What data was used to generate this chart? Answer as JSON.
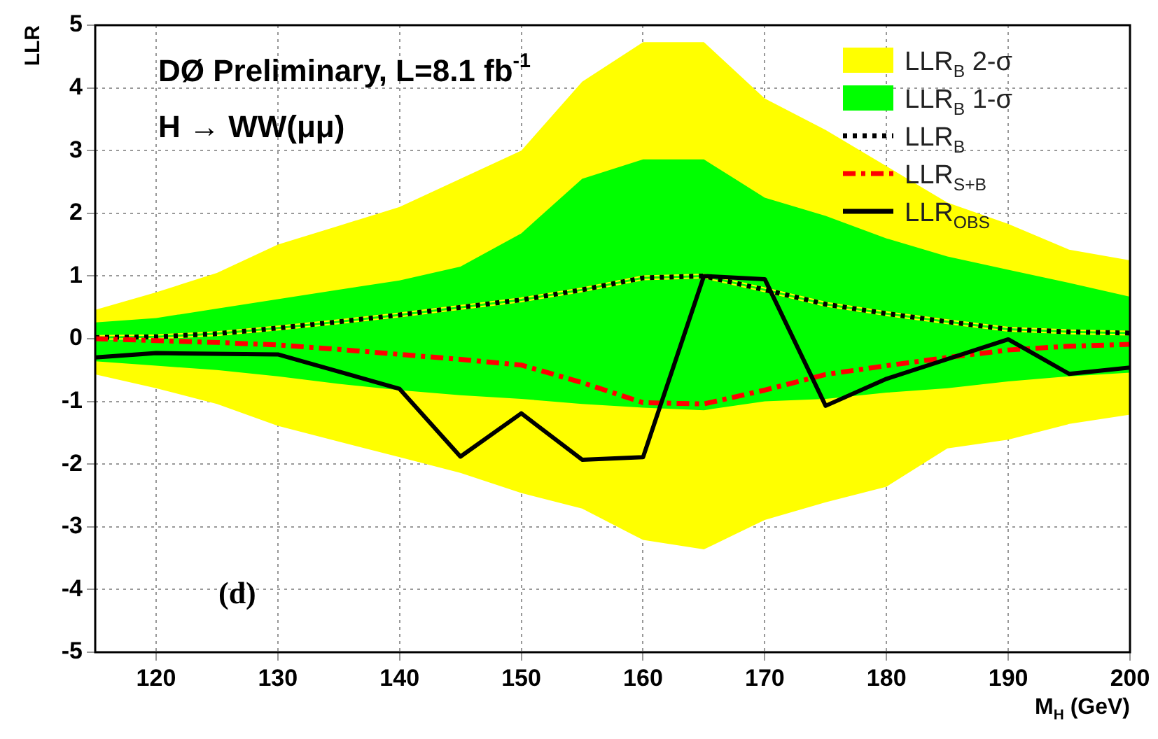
{
  "chart_data": {
    "type": "line",
    "title": "DØ Preliminary, L=8.1 fb$^{-1}$",
    "xlabel": "M$_{H}$ (GeV)",
    "ylabel": "LLR",
    "annotations": [
      "H → WW(μμ)",
      "(d)"
    ],
    "xlim": [
      115,
      200
    ],
    "xticks": [
      120,
      130,
      140,
      150,
      160,
      170,
      180,
      190,
      200
    ],
    "ylim": [
      -5,
      5
    ],
    "yticks": [
      -5,
      -4,
      -3,
      -2,
      -1,
      0,
      1,
      2,
      3,
      4,
      5
    ],
    "grid": true,
    "legend": "top right",
    "marker": "none",
    "series": [
      {
        "name": "LLR$_{B}$ 2-σ",
        "type": "line",
        "color": "#ffff00",
        "x": [
          115,
          120,
          125,
          130,
          135,
          140,
          145,
          150,
          155,
          160,
          165,
          170,
          175,
          180,
          185,
          190,
          195,
          200
        ],
        "values": [
          0.02,
          0.03,
          0.08,
          0.17,
          0.27,
          0.38,
          0.5,
          0.62,
          0.78,
          0.97,
          1.0,
          0.78,
          0.55,
          0.4,
          0.27,
          0.15,
          0.11,
          0.09
        ],
        "lower": [
          -0.57,
          -0.79,
          -1.04,
          -1.39,
          -1.64,
          -1.89,
          -2.14,
          -2.46,
          -2.71,
          -3.21,
          -3.36,
          -2.89,
          -2.61,
          -2.36,
          -1.75,
          -1.61,
          -1.36,
          -1.21
        ],
        "upper": [
          0.46,
          0.74,
          1.05,
          1.5,
          1.8,
          2.1,
          2.55,
          3.0,
          4.1,
          4.73,
          4.73,
          3.83,
          3.33,
          2.75,
          2.17,
          1.83,
          1.42,
          1.25
        ]
      },
      {
        "name": "LLR$_{B}$ 1-σ",
        "type": "line",
        "color": "#00ff00",
        "x": [
          115,
          120,
          125,
          130,
          135,
          140,
          145,
          150,
          155,
          160,
          165,
          170,
          175,
          180,
          185,
          190,
          195,
          200
        ],
        "values": [
          0.02,
          0.03,
          0.08,
          0.17,
          0.27,
          0.38,
          0.5,
          0.62,
          0.78,
          0.97,
          1.0,
          0.78,
          0.55,
          0.4,
          0.27,
          0.15,
          0.11,
          0.09
        ],
        "lower": [
          -0.36,
          -0.43,
          -0.5,
          -0.6,
          -0.72,
          -0.82,
          -0.9,
          -0.96,
          -1.04,
          -1.1,
          -1.14,
          -1.0,
          -0.96,
          -0.86,
          -0.79,
          -0.68,
          -0.6,
          -0.54
        ],
        "upper": [
          0.26,
          0.33,
          0.48,
          0.63,
          0.78,
          0.93,
          1.15,
          1.68,
          2.55,
          2.86,
          2.86,
          2.25,
          1.96,
          1.6,
          1.31,
          1.1,
          0.89,
          0.67
        ]
      },
      {
        "name": "LLR$_{B}$",
        "type": "line",
        "color": "#000000",
        "line_style": "dotted",
        "x": [
          115,
          120,
          125,
          130,
          135,
          140,
          145,
          150,
          155,
          160,
          165,
          170,
          175,
          180,
          185,
          190,
          195,
          200
        ],
        "values": [
          0.02,
          0.03,
          0.08,
          0.17,
          0.27,
          0.38,
          0.5,
          0.62,
          0.78,
          0.97,
          1.0,
          0.78,
          0.55,
          0.4,
          0.27,
          0.15,
          0.11,
          0.09
        ]
      },
      {
        "name": "LLR$_{S+B}$",
        "type": "line",
        "color": "#ff0000",
        "line_style": "dashed",
        "x": [
          115,
          120,
          125,
          130,
          135,
          140,
          145,
          150,
          155,
          160,
          165,
          170,
          175,
          180,
          185,
          190,
          195,
          200
        ],
        "values": [
          0.0,
          -0.03,
          -0.06,
          -0.1,
          -0.17,
          -0.25,
          -0.33,
          -0.42,
          -0.7,
          -1.02,
          -1.04,
          -0.82,
          -0.57,
          -0.43,
          -0.3,
          -0.18,
          -0.12,
          -0.09
        ]
      },
      {
        "name": "LLR$_{OBS}$",
        "type": "line",
        "color": "#000000",
        "line_style": "solid",
        "x": [
          115,
          120,
          130,
          140,
          145,
          150,
          155,
          160,
          165,
          170,
          175,
          180,
          190,
          195,
          200
        ],
        "values": [
          -0.3,
          -0.23,
          -0.25,
          -0.8,
          -1.88,
          -1.19,
          -1.93,
          -1.89,
          1.0,
          0.95,
          -1.07,
          -0.64,
          -0.01,
          -0.56,
          -0.46
        ]
      }
    ]
  }
}
